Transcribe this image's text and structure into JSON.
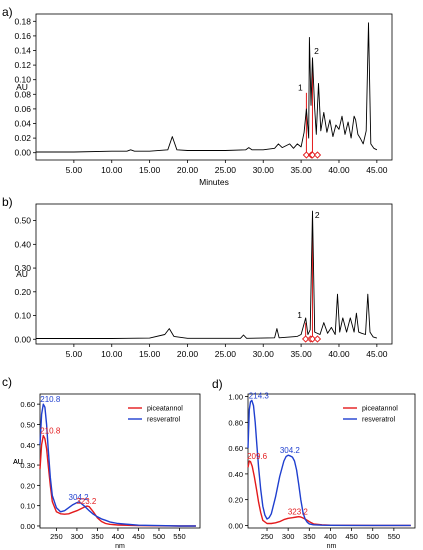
{
  "panels": [
    {
      "letter": "a)",
      "chart_data": {
        "type": "line",
        "xlabel": "Minutes",
        "ylabel": "AU",
        "xlim": [
          0,
          47
        ],
        "ylim": [
          -0.01,
          0.19
        ],
        "x_ticks": [
          5,
          10,
          15,
          20,
          25,
          30,
          35,
          40,
          45
        ],
        "x_tick_labels": [
          "5.00",
          "10.00",
          "15.00",
          "20.00",
          "25.00",
          "30.00",
          "35.00",
          "40.00",
          "45.00"
        ],
        "y_ticks": [
          0,
          0.02,
          0.04,
          0.06,
          0.08,
          0.1,
          0.12,
          0.14,
          0.16,
          0.18
        ],
        "y_tick_labels": [
          "0.00",
          "0.02",
          "0.04",
          "0.06",
          "0.08",
          "0.10",
          "0.12",
          "0.14",
          "0.16",
          "0.18"
        ],
        "peak_labels": [
          {
            "text": "1",
            "x": 35.7,
            "y": 0.085
          },
          {
            "text": "2",
            "x": 36.5,
            "y": 0.135
          }
        ],
        "series": [
          {
            "color": "#000000",
            "x": [
              0,
              5,
              10,
              12,
              12.5,
              13,
              15,
              17.4,
              18,
              18.6,
              20,
              25,
              27.7,
              28.1,
              28.5,
              30,
              31.5,
              32,
              32.5,
              33.5,
              34,
              34.5,
              35,
              35.4,
              35.7,
              36,
              36.1,
              36.3,
              36.5,
              36.8,
              37,
              37.3,
              37.6,
              38,
              38.4,
              38.8,
              39.2,
              39.6,
              40,
              40.4,
              40.8,
              41.2,
              41.6,
              42,
              42.2,
              42.5,
              42.8,
              43.2,
              43.6,
              43.9,
              44.2,
              44.6,
              45
            ],
            "y": [
              0.001,
              0.001,
              0.002,
              0.002,
              0.004,
              0.002,
              0.002,
              0.004,
              0.022,
              0.004,
              0.003,
              0.003,
              0.004,
              0.007,
              0.004,
              0.004,
              0.006,
              0.012,
              0.007,
              0.012,
              0.006,
              0.012,
              0.008,
              0.028,
              0.06,
              0.02,
              0.158,
              0.065,
              0.13,
              0.06,
              0.025,
              0.095,
              0.03,
              0.055,
              0.028,
              0.045,
              0.022,
              0.038,
              0.032,
              0.05,
              0.025,
              0.042,
              0.02,
              0.05,
              0.045,
              0.025,
              0.02,
              0.012,
              0.03,
              0.178,
              0.012,
              0.006,
              0.004
            ]
          }
        ],
        "markers": {
          "color": "#e31a1c",
          "x": [
            35.7,
            36.5
          ],
          "y_top": [
            0.082,
            0.128
          ]
        }
      }
    },
    {
      "letter": "b)",
      "chart_data": {
        "type": "line",
        "xlabel": "",
        "ylabel": "AU",
        "xlim": [
          0,
          47
        ],
        "ylim": [
          -0.02,
          0.57
        ],
        "x_ticks": [
          5,
          10,
          15,
          20,
          25,
          30,
          35,
          40,
          45
        ],
        "x_tick_labels": [
          "5.00",
          "10.00",
          "15.00",
          "20.00",
          "25.00",
          "30.00",
          "35.00",
          "40.00",
          "45.00"
        ],
        "y_ticks": [
          0,
          0.1,
          0.2,
          0.3,
          0.4,
          0.5
        ],
        "y_tick_labels": [
          "0.00",
          "0.10",
          "0.20",
          "0.30",
          "0.40",
          "0.50"
        ],
        "peak_labels": [
          {
            "text": "1",
            "x": 35.6,
            "y": 0.09
          },
          {
            "text": "2",
            "x": 36.6,
            "y": 0.51
          }
        ],
        "series": [
          {
            "color": "#000000",
            "x": [
              0,
              5,
              10,
              15,
              17,
              17.6,
              18.2,
              20,
              27,
              27.4,
              27.8,
              31.5,
              31.8,
              32.1,
              34.5,
              35,
              35.3,
              35.6,
              35.9,
              36.2,
              36.5,
              36.8,
              37.5,
              38,
              38.5,
              39,
              39.5,
              39.8,
              40.1,
              40.5,
              41,
              41.5,
              42,
              42.3,
              42.6,
              43,
              43.5,
              43.8,
              44.1,
              44.5,
              45
            ],
            "y": [
              0.003,
              0.003,
              0.003,
              0.005,
              0.02,
              0.045,
              0.012,
              0.004,
              0.004,
              0.018,
              0.004,
              0.006,
              0.045,
              0.006,
              0.012,
              0.02,
              0.055,
              0.09,
              0.02,
              0.04,
              0.54,
              0.03,
              0.02,
              0.07,
              0.025,
              0.05,
              0.02,
              0.19,
              0.03,
              0.09,
              0.03,
              0.09,
              0.03,
              0.11,
              0.03,
              0.025,
              0.02,
              0.19,
              0.03,
              0.01,
              0.005
            ]
          }
        ],
        "markers": {
          "color": "#e31a1c",
          "x": [
            35.6,
            36.5
          ],
          "y_top": [
            0.07,
            0.51
          ]
        }
      }
    },
    {
      "letter": "c)",
      "chart_data": {
        "type": "line",
        "xlabel": "nm",
        "ylabel": "AU",
        "xlim": [
          210,
          600
        ],
        "ylim": [
          -0.01,
          0.65
        ],
        "x_ticks": [
          250,
          300,
          350,
          400,
          450,
          500,
          550
        ],
        "x_tick_labels": [
          "250",
          "300",
          "350",
          "400",
          "450",
          "500",
          "550"
        ],
        "y_ticks": [
          0,
          0.1,
          0.2,
          0.3,
          0.4,
          0.5,
          0.6
        ],
        "y_tick_labels": [
          "0.00",
          "0.10",
          "0.20",
          "0.30",
          "0.40",
          "0.50",
          "0.60"
        ],
        "legend_position": "top-right",
        "series": [
          {
            "name": "piceatannol",
            "color": "#e31a1c",
            "x": [
              210,
              214,
              218,
              222,
              226,
              230,
              235,
              240,
              250,
              260,
              270,
              280,
              290,
              300,
              310,
              320,
              325,
              330,
              340,
              350,
              360,
              370,
              380,
              400,
              450,
              500,
              550,
              590
            ],
            "y": [
              0.28,
              0.4,
              0.445,
              0.43,
              0.38,
              0.3,
              0.2,
              0.12,
              0.07,
              0.06,
              0.058,
              0.06,
              0.068,
              0.075,
              0.085,
              0.095,
              0.098,
              0.095,
              0.07,
              0.04,
              0.022,
              0.012,
              0.008,
              0.005,
              0.002,
              0.001,
              0.0,
              0.0
            ]
          },
          {
            "name": "resveratrol",
            "color": "#1f3fcf",
            "x": [
              210,
              214,
              218,
              222,
              226,
              230,
              235,
              240,
              250,
              260,
              270,
              280,
              290,
              300,
              304,
              310,
              320,
              330,
              340,
              350,
              360,
              370,
              380,
              400,
              450,
              500,
              550,
              590
            ],
            "y": [
              0.4,
              0.55,
              0.6,
              0.585,
              0.5,
              0.38,
              0.24,
              0.15,
              0.09,
              0.07,
              0.075,
              0.09,
              0.105,
              0.115,
              0.118,
              0.112,
              0.095,
              0.075,
              0.058,
              0.045,
              0.035,
              0.028,
              0.02,
              0.012,
              0.004,
              0.002,
              0.0,
              0.0
            ]
          }
        ],
        "annotations": [
          {
            "text": "210.8",
            "series": "resveratrol",
            "x": 218,
            "y": 0.6
          },
          {
            "text": "210.8",
            "series": "piceatannol",
            "x": 218,
            "y": 0.445
          },
          {
            "text": "304.2",
            "series": "resveratrol",
            "x": 304,
            "y": 0.118
          },
          {
            "text": "323.2",
            "series": "piceatannol",
            "x": 323,
            "y": 0.098
          }
        ]
      }
    },
    {
      "letter": "d)",
      "chart_data": {
        "type": "line",
        "xlabel": "nm",
        "ylabel": "AU",
        "xlim": [
          205,
          600
        ],
        "ylim": [
          -0.02,
          1.02
        ],
        "x_ticks": [
          250,
          300,
          350,
          400,
          450,
          500,
          550
        ],
        "x_tick_labels": [
          "250",
          "300",
          "350",
          "400",
          "450",
          "500",
          "550"
        ],
        "y_ticks": [
          0,
          0.2,
          0.4,
          0.6,
          0.8,
          1.0
        ],
        "y_tick_labels": [
          "0.00",
          "0.20",
          "0.40",
          "0.60",
          "0.80",
          "1.00"
        ],
        "legend_position": "top-right",
        "series": [
          {
            "name": "piceatannol",
            "color": "#e31a1c",
            "x": [
              205,
              208,
              211,
              215,
              220,
              225,
              230,
              235,
              240,
              250,
              260,
              270,
              280,
              290,
              300,
              310,
              320,
              325,
              330,
              340,
              350,
              355,
              360,
              380,
              400,
              450,
              500,
              550,
              590
            ],
            "y": [
              0.45,
              0.5,
              0.495,
              0.46,
              0.38,
              0.28,
              0.18,
              0.1,
              0.04,
              0.015,
              0.015,
              0.02,
              0.03,
              0.045,
              0.055,
              0.06,
              0.065,
              0.068,
              0.065,
              0.05,
              0.03,
              0.02,
              0.012,
              0.005,
              0.002,
              0.001,
              0.0,
              0.0,
              0.0
            ]
          },
          {
            "name": "resveratrol",
            "color": "#1f3fcf",
            "x": [
              205,
              208,
              211,
              214,
              218,
              222,
              226,
              230,
              235,
              240,
              245,
              250,
              255,
              260,
              270,
              280,
              290,
              295,
              300,
              304,
              310,
              315,
              320,
              325,
              330,
              335,
              340,
              345,
              350,
              360,
              380,
              400,
              450,
              500,
              550,
              590
            ],
            "y": [
              0.6,
              0.9,
              0.96,
              0.97,
              0.93,
              0.8,
              0.62,
              0.45,
              0.28,
              0.15,
              0.08,
              0.05,
              0.06,
              0.09,
              0.22,
              0.38,
              0.5,
              0.535,
              0.545,
              0.54,
              0.53,
              0.5,
              0.43,
              0.32,
              0.2,
              0.1,
              0.05,
              0.025,
              0.012,
              0.005,
              0.002,
              0.001,
              0.0,
              0.0,
              0.0,
              0.0
            ]
          }
        ],
        "annotations": [
          {
            "text": "214.3",
            "series": "resveratrol",
            "x": 214,
            "y": 0.97
          },
          {
            "text": "209.6",
            "series": "piceatannol",
            "x": 210,
            "y": 0.5
          },
          {
            "text": "304.2",
            "series": "resveratrol",
            "x": 304,
            "y": 0.545
          },
          {
            "text": "323.2",
            "series": "piceatannol",
            "x": 323,
            "y": 0.068
          }
        ]
      }
    }
  ]
}
